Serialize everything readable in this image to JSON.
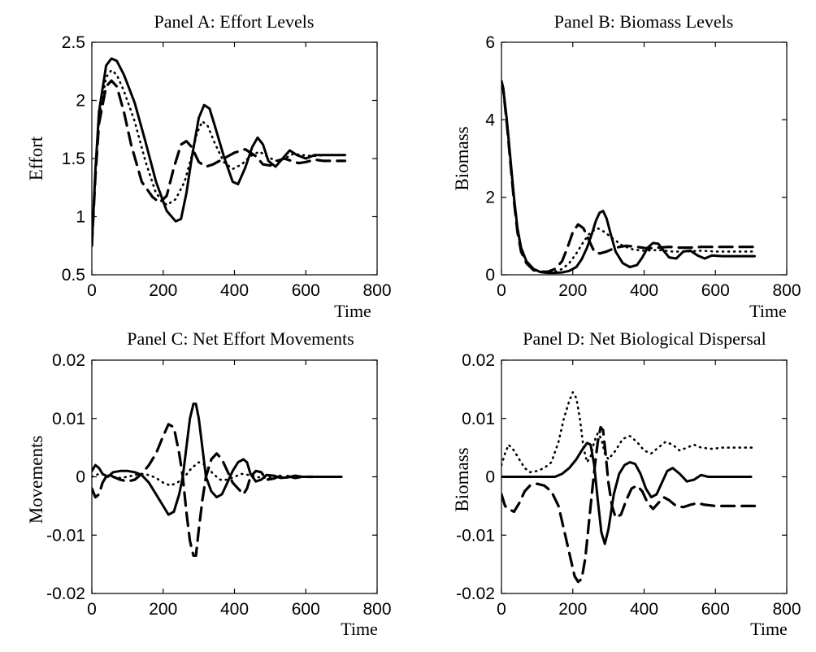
{
  "chart_data": [
    {
      "type": "line",
      "title": "Panel A: Effort Levels",
      "xlabel": "Time",
      "ylabel": "Effort",
      "xlim": [
        0,
        800
      ],
      "ylim": [
        0.5,
        2.5
      ],
      "xticks": [
        "0",
        "200",
        "400",
        "600",
        "800"
      ],
      "yticks": [
        "0.5",
        "1",
        "1.5",
        "2",
        "2.5"
      ],
      "series": [
        {
          "style": "solid",
          "x": [
            0,
            10,
            20,
            40,
            55,
            70,
            90,
            120,
            150,
            180,
            210,
            235,
            250,
            265,
            280,
            300,
            315,
            330,
            345,
            370,
            395,
            410,
            430,
            450,
            465,
            480,
            495,
            515,
            535,
            555,
            575,
            600,
            625,
            650,
            680,
            710
          ],
          "y": [
            0.75,
            1.4,
            1.9,
            2.3,
            2.36,
            2.34,
            2.22,
            1.98,
            1.65,
            1.3,
            1.05,
            0.96,
            0.98,
            1.2,
            1.5,
            1.85,
            1.96,
            1.93,
            1.78,
            1.52,
            1.3,
            1.28,
            1.42,
            1.6,
            1.68,
            1.62,
            1.48,
            1.43,
            1.5,
            1.57,
            1.53,
            1.5,
            1.53,
            1.53,
            1.53,
            1.53
          ]
        },
        {
          "style": "dashed",
          "x": [
            0,
            10,
            20,
            40,
            55,
            70,
            90,
            110,
            140,
            170,
            190,
            210,
            230,
            250,
            265,
            280,
            300,
            320,
            340,
            370,
            400,
            430,
            460,
            480,
            500,
            520,
            540,
            560,
            580,
            600,
            625,
            650,
            680,
            710
          ],
          "y": [
            0.75,
            1.35,
            1.8,
            2.12,
            2.17,
            2.12,
            1.9,
            1.62,
            1.3,
            1.17,
            1.12,
            1.18,
            1.42,
            1.62,
            1.65,
            1.6,
            1.47,
            1.43,
            1.45,
            1.5,
            1.55,
            1.58,
            1.52,
            1.45,
            1.44,
            1.48,
            1.5,
            1.48,
            1.46,
            1.47,
            1.49,
            1.48,
            1.48,
            1.48
          ]
        },
        {
          "style": "dotted",
          "x": [
            0,
            10,
            20,
            40,
            55,
            70,
            90,
            120,
            150,
            180,
            210,
            235,
            260,
            280,
            295,
            310,
            325,
            345,
            370,
            395,
            420,
            445,
            470,
            490,
            515,
            540,
            565,
            590,
            620,
            650,
            680,
            710
          ],
          "y": [
            0.75,
            1.38,
            1.85,
            2.2,
            2.26,
            2.22,
            2.08,
            1.82,
            1.48,
            1.2,
            1.1,
            1.15,
            1.3,
            1.52,
            1.72,
            1.82,
            1.78,
            1.63,
            1.47,
            1.41,
            1.45,
            1.52,
            1.56,
            1.52,
            1.48,
            1.5,
            1.54,
            1.53,
            1.52,
            1.53,
            1.53,
            1.53
          ]
        }
      ]
    },
    {
      "type": "line",
      "title": "Panel B: Biomass Levels",
      "xlabel": "Time",
      "ylabel": "Biomass",
      "xlim": [
        0,
        800
      ],
      "ylim": [
        0,
        6
      ],
      "xticks": [
        "0",
        "200",
        "400",
        "600",
        "800"
      ],
      "yticks": [
        "0",
        "2",
        "4",
        "6"
      ],
      "series": [
        {
          "style": "solid",
          "x": [
            0,
            5,
            15,
            25,
            35,
            45,
            55,
            70,
            90,
            110,
            130,
            150,
            170,
            190,
            210,
            225,
            240,
            255,
            265,
            275,
            285,
            295,
            305,
            320,
            340,
            360,
            380,
            395,
            410,
            425,
            440,
            455,
            470,
            490,
            510,
            530,
            550,
            570,
            590,
            620,
            650,
            680,
            710
          ],
          "y": [
            5.0,
            4.8,
            4.0,
            3.0,
            2.0,
            1.2,
            0.7,
            0.35,
            0.15,
            0.07,
            0.05,
            0.05,
            0.06,
            0.1,
            0.2,
            0.4,
            0.7,
            1.1,
            1.4,
            1.6,
            1.65,
            1.45,
            1.1,
            0.6,
            0.3,
            0.2,
            0.25,
            0.45,
            0.7,
            0.82,
            0.8,
            0.62,
            0.45,
            0.42,
            0.6,
            0.62,
            0.5,
            0.42,
            0.5,
            0.48,
            0.48,
            0.48,
            0.48
          ]
        },
        {
          "style": "dashed",
          "x": [
            0,
            5,
            15,
            25,
            35,
            45,
            55,
            70,
            90,
            110,
            130,
            150,
            170,
            185,
            200,
            215,
            230,
            245,
            260,
            275,
            295,
            320,
            350,
            380,
            410,
            440,
            470,
            500,
            530,
            560,
            590,
            620,
            650,
            680,
            710
          ],
          "y": [
            5.0,
            4.8,
            3.9,
            2.9,
            1.9,
            1.1,
            0.6,
            0.3,
            0.12,
            0.08,
            0.08,
            0.15,
            0.35,
            0.7,
            1.1,
            1.3,
            1.2,
            0.9,
            0.6,
            0.55,
            0.6,
            0.7,
            0.75,
            0.72,
            0.68,
            0.7,
            0.72,
            0.7,
            0.7,
            0.72,
            0.72,
            0.72,
            0.72,
            0.72,
            0.72
          ]
        },
        {
          "style": "dotted",
          "x": [
            0,
            5,
            15,
            25,
            35,
            45,
            55,
            70,
            90,
            110,
            130,
            150,
            170,
            190,
            210,
            230,
            250,
            270,
            290,
            310,
            340,
            370,
            400,
            440,
            480,
            520,
            560,
            600,
            640,
            680,
            710
          ],
          "y": [
            5.0,
            4.8,
            3.95,
            2.95,
            1.95,
            1.15,
            0.65,
            0.32,
            0.13,
            0.07,
            0.06,
            0.08,
            0.15,
            0.3,
            0.55,
            0.85,
            1.1,
            1.2,
            1.1,
            0.95,
            0.75,
            0.65,
            0.62,
            0.64,
            0.6,
            0.6,
            0.62,
            0.6,
            0.6,
            0.6,
            0.6
          ]
        }
      ]
    },
    {
      "type": "line",
      "title": "Panel C: Net Effort Movements",
      "xlabel": "Time",
      "ylabel": "Movements",
      "xlim": [
        0,
        800
      ],
      "ylim": [
        -0.02,
        0.02
      ],
      "xticks": [
        "0",
        "200",
        "400",
        "600",
        "800"
      ],
      "yticks": [
        "-0.02",
        "-0.01",
        "0",
        "0.01",
        "0.02"
      ],
      "series": [
        {
          "style": "solid",
          "x": [
            0,
            10,
            20,
            30,
            45,
            60,
            80,
            100,
            120,
            140,
            160,
            180,
            200,
            215,
            230,
            245,
            255,
            265,
            275,
            285,
            292,
            300,
            310,
            320,
            335,
            350,
            365,
            380,
            395,
            410,
            425,
            435,
            445,
            460,
            475,
            490,
            510,
            530,
            550,
            570,
            590,
            620,
            660,
            700
          ],
          "y": [
            0.001,
            0.002,
            0.0015,
            0.0005,
            0.0,
            0.0008,
            0.001,
            0.001,
            0.0008,
            0.0003,
            -0.001,
            -0.003,
            -0.005,
            -0.0065,
            -0.006,
            -0.003,
            0.0,
            0.005,
            0.01,
            0.0125,
            0.0125,
            0.01,
            0.005,
            0.0,
            -0.0025,
            -0.0035,
            -0.003,
            -0.001,
            0.001,
            0.0025,
            0.003,
            0.0025,
            0.0005,
            -0.0008,
            -0.0005,
            0.0003,
            0.0002,
            -0.0002,
            -0.0001,
            0.0002,
            0.0,
            0.0,
            0.0,
            0.0
          ]
        },
        {
          "style": "dashed",
          "x": [
            0,
            10,
            20,
            30,
            45,
            60,
            80,
            100,
            120,
            140,
            160,
            180,
            200,
            215,
            230,
            245,
            255,
            265,
            275,
            285,
            292,
            300,
            310,
            320,
            335,
            350,
            365,
            380,
            395,
            410,
            425,
            435,
            445,
            460,
            475,
            490,
            510,
            530,
            550,
            570,
            590,
            620
          ],
          "y": [
            -0.002,
            -0.0035,
            -0.003,
            -0.001,
            0.0005,
            0.0,
            -0.0005,
            -0.0008,
            -0.0005,
            0.0005,
            0.002,
            0.004,
            0.007,
            0.009,
            0.0085,
            0.004,
            0.0,
            -0.006,
            -0.011,
            -0.0135,
            -0.0135,
            -0.009,
            -0.004,
            0.0,
            0.003,
            0.004,
            0.003,
            0.001,
            -0.001,
            -0.002,
            -0.003,
            -0.002,
            0.0,
            0.001,
            0.0008,
            -0.0005,
            -0.0003,
            0.0002,
            0.0001,
            -0.0002,
            0.0,
            0.0
          ]
        },
        {
          "style": "dotted",
          "x": [
            0,
            20,
            40,
            60,
            80,
            100,
            120,
            140,
            160,
            180,
            200,
            220,
            240,
            260,
            280,
            300,
            320,
            340,
            360,
            380,
            400,
            420,
            440,
            460,
            480,
            500,
            540,
            580,
            620
          ],
          "y": [
            0.0,
            0.0005,
            0.0003,
            0.0,
            -0.0002,
            0.0,
            0.0003,
            0.0005,
            0.0003,
            -0.0002,
            -0.001,
            -0.0015,
            -0.001,
            0.0,
            0.0015,
            0.0025,
            0.002,
            0.0005,
            -0.0005,
            -0.0005,
            0.0,
            0.0005,
            0.0003,
            0.0,
            -0.0002,
            0.0,
            0.0,
            0.0,
            0.0
          ]
        }
      ]
    },
    {
      "type": "line",
      "title": "Panel D: Net Biological Dispersal",
      "xlabel": "Time",
      "ylabel": "Biomass",
      "xlim": [
        0,
        800
      ],
      "ylim": [
        -0.02,
        0.02
      ],
      "xticks": [
        "0",
        "200",
        "400",
        "600",
        "800"
      ],
      "yticks": [
        "-0.02",
        "-0.01",
        "0",
        "0.01",
        "0.02"
      ],
      "series": [
        {
          "style": "solid",
          "x": [
            0,
            40,
            80,
            120,
            150,
            170,
            190,
            210,
            225,
            240,
            250,
            260,
            270,
            280,
            290,
            300,
            315,
            330,
            345,
            360,
            375,
            390,
            405,
            420,
            435,
            450,
            465,
            480,
            500,
            520,
            540,
            560,
            580,
            620,
            660,
            700
          ],
          "y": [
            0.0,
            0.0,
            0.0,
            0.0,
            0.0,
            0.0005,
            0.0015,
            0.003,
            0.0045,
            0.0058,
            0.0055,
            0.002,
            -0.004,
            -0.0095,
            -0.0115,
            -0.009,
            -0.003,
            0.0005,
            0.002,
            0.0025,
            0.0022,
            0.0005,
            -0.002,
            -0.0035,
            -0.003,
            -0.001,
            0.001,
            0.0015,
            0.0005,
            -0.0008,
            -0.0005,
            0.0003,
            0.0,
            0.0,
            0.0,
            0.0
          ]
        },
        {
          "style": "dashed",
          "x": [
            0,
            10,
            20,
            35,
            50,
            65,
            80,
            100,
            120,
            140,
            160,
            175,
            190,
            205,
            215,
            225,
            235,
            245,
            255,
            262,
            270,
            278,
            285,
            292,
            300,
            310,
            320,
            335,
            350,
            365,
            380,
            395,
            410,
            425,
            440,
            455,
            470,
            490,
            510,
            530,
            550,
            570,
            600,
            640,
            680,
            710
          ],
          "y": [
            -0.003,
            -0.005,
            -0.0055,
            -0.006,
            -0.0045,
            -0.0025,
            -0.0015,
            -0.0012,
            -0.0015,
            -0.0025,
            -0.005,
            -0.009,
            -0.013,
            -0.017,
            -0.018,
            -0.0175,
            -0.014,
            -0.008,
            -0.002,
            0.002,
            0.006,
            0.0085,
            0.008,
            0.004,
            -0.001,
            -0.005,
            -0.007,
            -0.0065,
            -0.004,
            -0.002,
            -0.0015,
            -0.0025,
            -0.0045,
            -0.0055,
            -0.0045,
            -0.0035,
            -0.004,
            -0.005,
            -0.0052,
            -0.0048,
            -0.0045,
            -0.0048,
            -0.005,
            -0.005,
            -0.005,
            -0.005
          ]
        },
        {
          "style": "dotted",
          "x": [
            0,
            10,
            20,
            35,
            50,
            65,
            80,
            100,
            120,
            140,
            160,
            175,
            190,
            200,
            210,
            220,
            230,
            240,
            250,
            260,
            270,
            280,
            290,
            300,
            320,
            340,
            360,
            380,
            400,
            420,
            440,
            460,
            480,
            500,
            520,
            540,
            560,
            590,
            620,
            660,
            710
          ],
          "y": [
            0.002,
            0.004,
            0.0055,
            0.0045,
            0.003,
            0.0015,
            0.0008,
            0.001,
            0.0015,
            0.0025,
            0.006,
            0.01,
            0.013,
            0.0145,
            0.0135,
            0.01,
            0.005,
            0.0025,
            0.0035,
            0.006,
            0.0075,
            0.0065,
            0.004,
            0.003,
            0.0045,
            0.0065,
            0.007,
            0.006,
            0.0045,
            0.004,
            0.005,
            0.006,
            0.0055,
            0.0045,
            0.005,
            0.0055,
            0.005,
            0.0048,
            0.005,
            0.005,
            0.005
          ]
        }
      ]
    }
  ]
}
